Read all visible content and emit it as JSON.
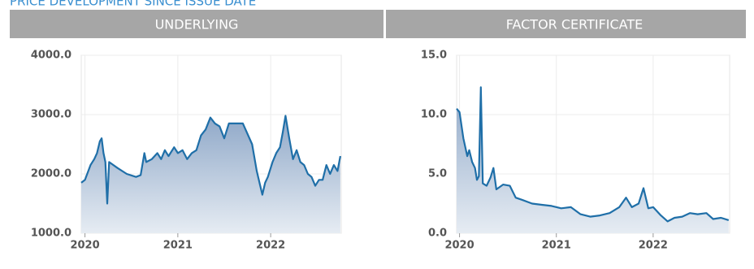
{
  "page_title": "PRICE DEVELOPMENT SINCE ISSUE DATE",
  "chart_data": [
    {
      "type": "area",
      "title": "UNDERLYING",
      "x": [
        2019.96,
        2020.0,
        2020.06,
        2020.1,
        2020.13,
        2020.16,
        2020.18,
        2020.2,
        2020.22,
        2020.24,
        2020.26,
        2020.35,
        2020.45,
        2020.55,
        2020.6,
        2020.64,
        2020.66,
        2020.72,
        2020.78,
        2020.82,
        2020.86,
        2020.9,
        2020.96,
        2021.0,
        2021.05,
        2021.1,
        2021.15,
        2021.2,
        2021.25,
        2021.3,
        2021.35,
        2021.4,
        2021.45,
        2021.5,
        2021.55,
        2021.65,
        2021.7,
        2021.8,
        2021.85,
        2021.88,
        2021.91,
        2021.94,
        2021.97,
        2022.02,
        2022.06,
        2022.1,
        2022.13,
        2022.16,
        2022.2,
        2022.24,
        2022.28,
        2022.32,
        2022.36,
        2022.4,
        2022.44,
        2022.48,
        2022.52,
        2022.56,
        2022.6,
        2022.64,
        2022.68,
        2022.72,
        2022.75
      ],
      "values": [
        1850,
        1900,
        2150,
        2250,
        2350,
        2550,
        2600,
        2350,
        2200,
        1500,
        2200,
        2100,
        2000,
        1950,
        1980,
        2350,
        2200,
        2250,
        2350,
        2250,
        2400,
        2300,
        2450,
        2350,
        2400,
        2250,
        2350,
        2400,
        2650,
        2750,
        2950,
        2850,
        2800,
        2600,
        2850,
        2850,
        2850,
        2500,
        2050,
        1850,
        1650,
        1850,
        1950,
        2200,
        2350,
        2450,
        2700,
        2980,
        2600,
        2250,
        2400,
        2200,
        2150,
        2000,
        1950,
        1800,
        1900,
        1900,
        2150,
        2000,
        2150,
        2050,
        2300
      ],
      "color": "#1f6fa8",
      "xlim": [
        2019.96,
        2022.76
      ],
      "xticks": [
        2020,
        2021,
        2022
      ],
      "ylim": [
        1000,
        4000
      ],
      "yticks": [
        {
          "value": 1000,
          "label": "1000.0"
        },
        {
          "value": 2000,
          "label": "2000.0"
        },
        {
          "value": 3000,
          "label": "3000.0"
        },
        {
          "value": 4000,
          "label": "4000.0"
        }
      ],
      "grid": true
    },
    {
      "type": "area",
      "title": "FACTOR CERTIFICATE",
      "x": [
        2019.97,
        2020.0,
        2020.04,
        2020.08,
        2020.1,
        2020.13,
        2020.16,
        2020.18,
        2020.2,
        2020.22,
        2020.24,
        2020.28,
        2020.32,
        2020.35,
        2020.38,
        2020.45,
        2020.52,
        2020.58,
        2020.65,
        2020.75,
        2020.85,
        2020.95,
        2021.05,
        2021.15,
        2021.25,
        2021.35,
        2021.45,
        2021.55,
        2021.65,
        2021.72,
        2021.78,
        2021.85,
        2021.9,
        2021.95,
        2022.0,
        2022.08,
        2022.15,
        2022.22,
        2022.3,
        2022.38,
        2022.46,
        2022.55,
        2022.62,
        2022.7,
        2022.78
      ],
      "values": [
        10.5,
        10.2,
        8,
        6.5,
        7,
        6,
        5.5,
        4.5,
        4.8,
        12.3,
        4.2,
        4.0,
        4.7,
        5.5,
        3.7,
        4.1,
        4.0,
        3.0,
        2.8,
        2.5,
        2.4,
        2.3,
        2.1,
        2.2,
        1.6,
        1.4,
        1.5,
        1.7,
        2.2,
        3.0,
        2.2,
        2.5,
        3.8,
        2.1,
        2.2,
        1.5,
        1.0,
        1.3,
        1.4,
        1.7,
        1.6,
        1.7,
        1.2,
        1.3,
        1.1
      ],
      "color": "#1f6fa8",
      "xlim": [
        2019.97,
        2022.79
      ],
      "xticks": [
        2020,
        2021,
        2022
      ],
      "ylim": [
        0,
        15
      ],
      "yticks": [
        {
          "value": 0,
          "label": "0.0"
        },
        {
          "value": 5,
          "label": "5.0"
        },
        {
          "value": 10,
          "label": "10.0"
        },
        {
          "value": 15,
          "label": "15.0"
        }
      ],
      "grid": true
    }
  ]
}
